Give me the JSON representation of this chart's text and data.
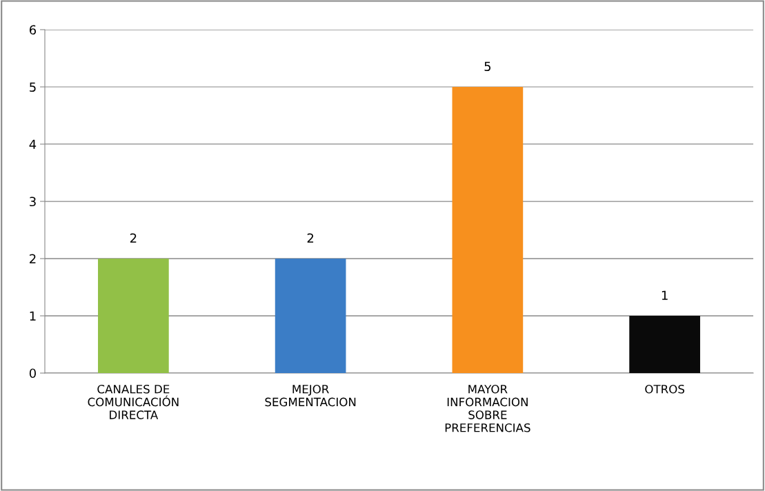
{
  "chart_data": {
    "type": "bar",
    "categories": [
      "CANALES DE\nCOMUNICACIÓN\nDIRECTA",
      "MEJOR\nSEGMENTACION",
      "MAYOR\nINFORMACION\nSOBRE\nPREFERENCIAS",
      "OTROS"
    ],
    "values": [
      2,
      2,
      5,
      1
    ],
    "colors": [
      "#92c047",
      "#3b7dc6",
      "#f7901e",
      "#0a0a0a"
    ],
    "ylim": [
      0,
      6
    ],
    "yticks": [
      0,
      1,
      2,
      3,
      4,
      5,
      6
    ],
    "grid": "y",
    "data_labels": true,
    "legend": false
  }
}
